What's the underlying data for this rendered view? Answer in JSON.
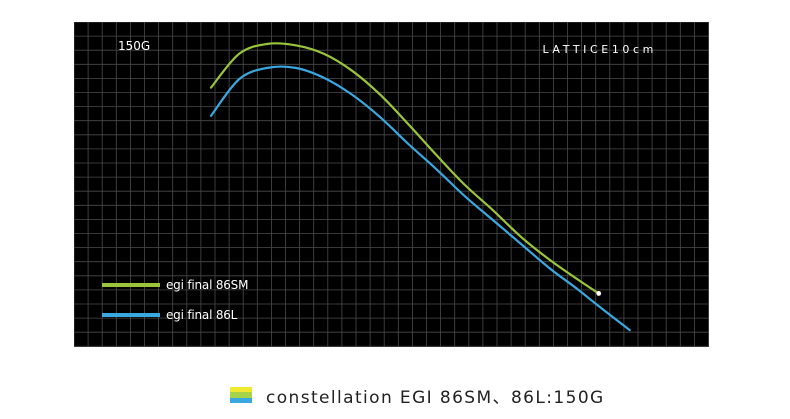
{
  "chart_data": {
    "type": "line",
    "weight_label": "150G",
    "grid_label": "LATTICE10cm",
    "grid": true,
    "legend_placement": "bottom-left",
    "series": [
      {
        "name": "egi final 86SM",
        "color": "#9ac43a",
        "points": [
          [
            0,
            14
          ],
          [
            2,
            16.4
          ],
          [
            4,
            17.1
          ],
          [
            6,
            17.0
          ],
          [
            8,
            16.4
          ],
          [
            10,
            15.2
          ],
          [
            12,
            13.5
          ],
          [
            14,
            11.4
          ],
          [
            16,
            9.2
          ],
          [
            18,
            7.1
          ],
          [
            20,
            5.3
          ],
          [
            22,
            3.4
          ],
          [
            24,
            1.8
          ],
          [
            26,
            0.4
          ],
          [
            27.5,
            -0.6
          ]
        ]
      },
      {
        "name": "egi final 86L",
        "color": "#3aa8e0",
        "points": [
          [
            0,
            12
          ],
          [
            2,
            14.6
          ],
          [
            4,
            15.4
          ],
          [
            6,
            15.4
          ],
          [
            8,
            14.7
          ],
          [
            10,
            13.5
          ],
          [
            12,
            11.9
          ],
          [
            14,
            10.0
          ],
          [
            16,
            8.2
          ],
          [
            18,
            6.3
          ],
          [
            20,
            4.6
          ],
          [
            22,
            2.9
          ],
          [
            24,
            1.2
          ],
          [
            26,
            -0.3
          ],
          [
            27.5,
            -1.5
          ],
          [
            29.7,
            -3.2
          ]
        ]
      }
    ],
    "marker": {
      "color": "#ffffff",
      "point": [
        27.5,
        -0.6
      ]
    }
  },
  "caption": {
    "text": "constellation EGI 86SM、86L:150G",
    "icon_colors": [
      "#f2e830",
      "#a8d24a",
      "#3aa8e0"
    ]
  }
}
